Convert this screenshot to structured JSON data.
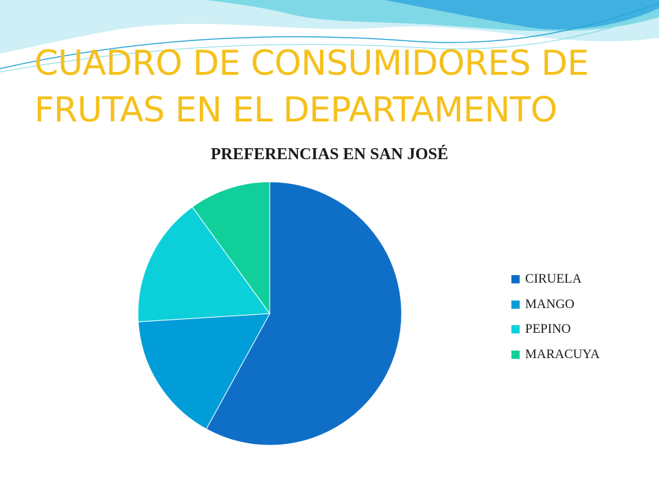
{
  "slide": {
    "title": "CUADRO DE CONSUMIDORES DE FRUTAS EN EL DEPARTAMENTO",
    "title_color": "#F5C01A",
    "wave_colors": [
      "#7FD8E6",
      "#3FB0E0",
      "#2AA6D8",
      "#CDEFF5"
    ]
  },
  "chart_data": {
    "type": "pie",
    "title": "PREFERENCIAS EN SAN JOSÉ",
    "categories": [
      "CIRUELA",
      "MANGO",
      "PEPINO",
      "MARACUYA"
    ],
    "values": [
      58,
      16,
      16,
      10
    ],
    "colors": [
      "#0F6FC6",
      "#009DD9",
      "#0BD0D9",
      "#10CF9B"
    ],
    "start_angle_deg": 0,
    "direction": "clockwise",
    "legend": "right"
  }
}
